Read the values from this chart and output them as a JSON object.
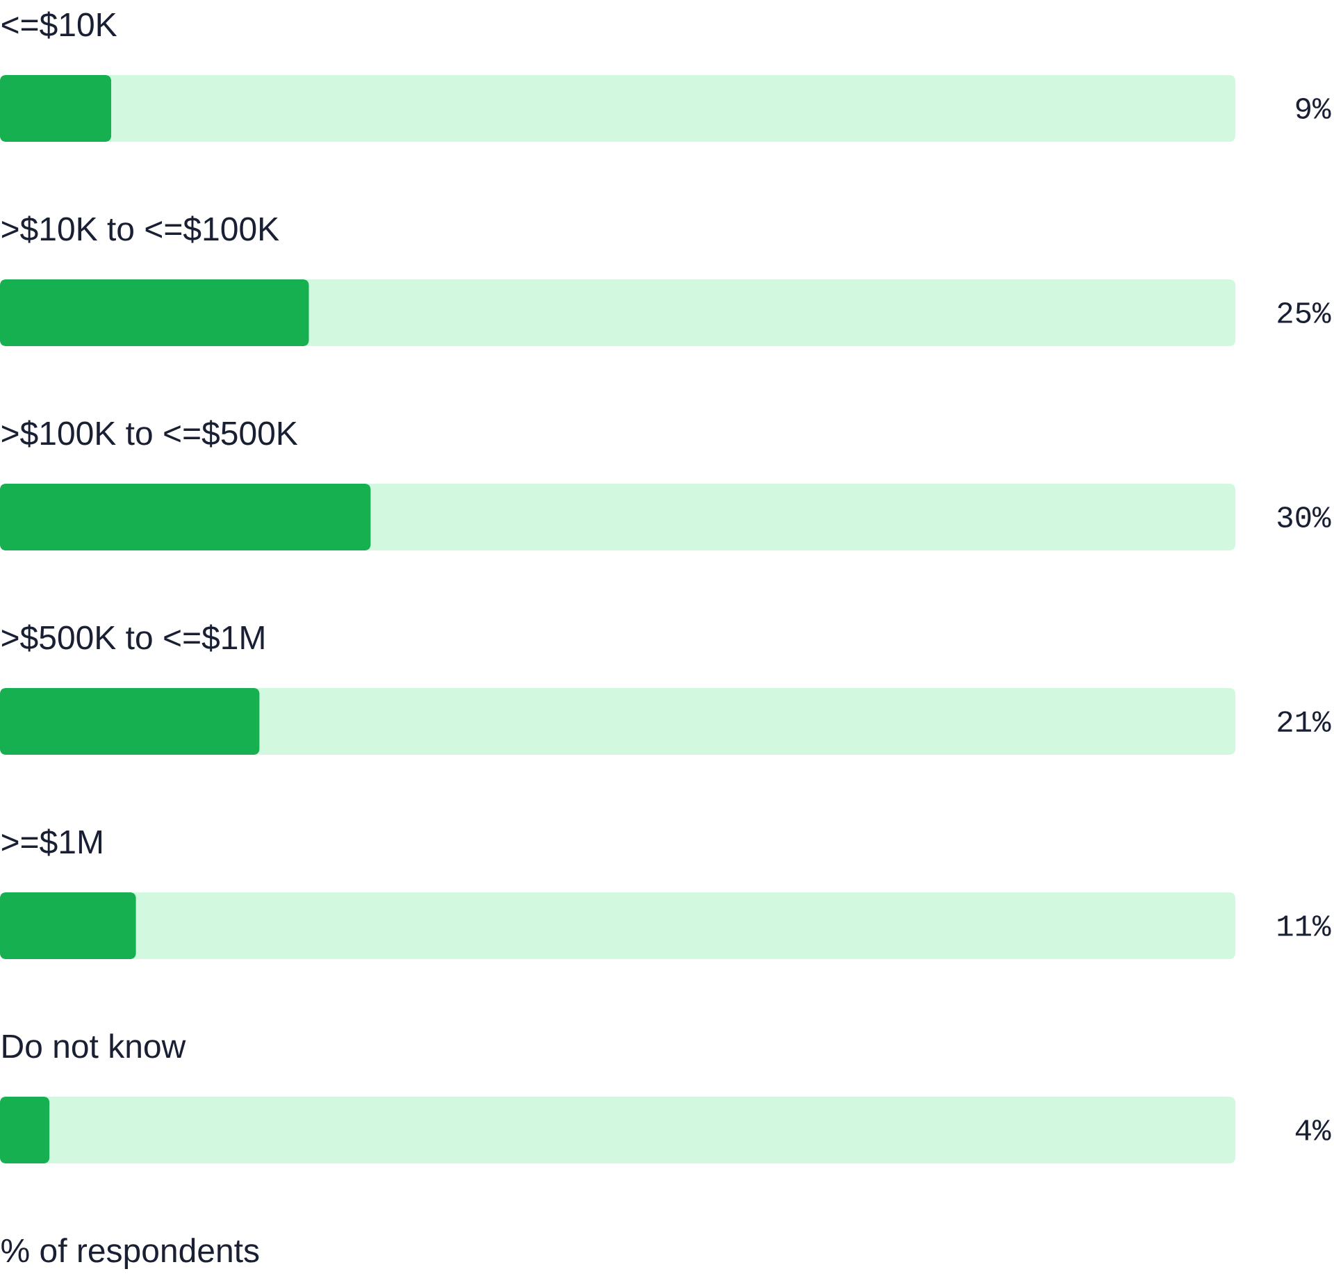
{
  "chart_data": {
    "type": "bar",
    "orientation": "horizontal",
    "categories": [
      "<=$10K",
      ">$10K to <=$100K",
      ">$100K to <=$500K",
      ">$500K to <=$1M",
      ">=$1M",
      "Do not know"
    ],
    "values": [
      9,
      25,
      30,
      21,
      11,
      4
    ],
    "value_labels": [
      "9%",
      "25%",
      "30%",
      "21%",
      "11%",
      "4%"
    ],
    "color": "#16b050",
    "xlim": [
      0,
      100
    ],
    "annotations": [
      "% of respondents"
    ]
  }
}
